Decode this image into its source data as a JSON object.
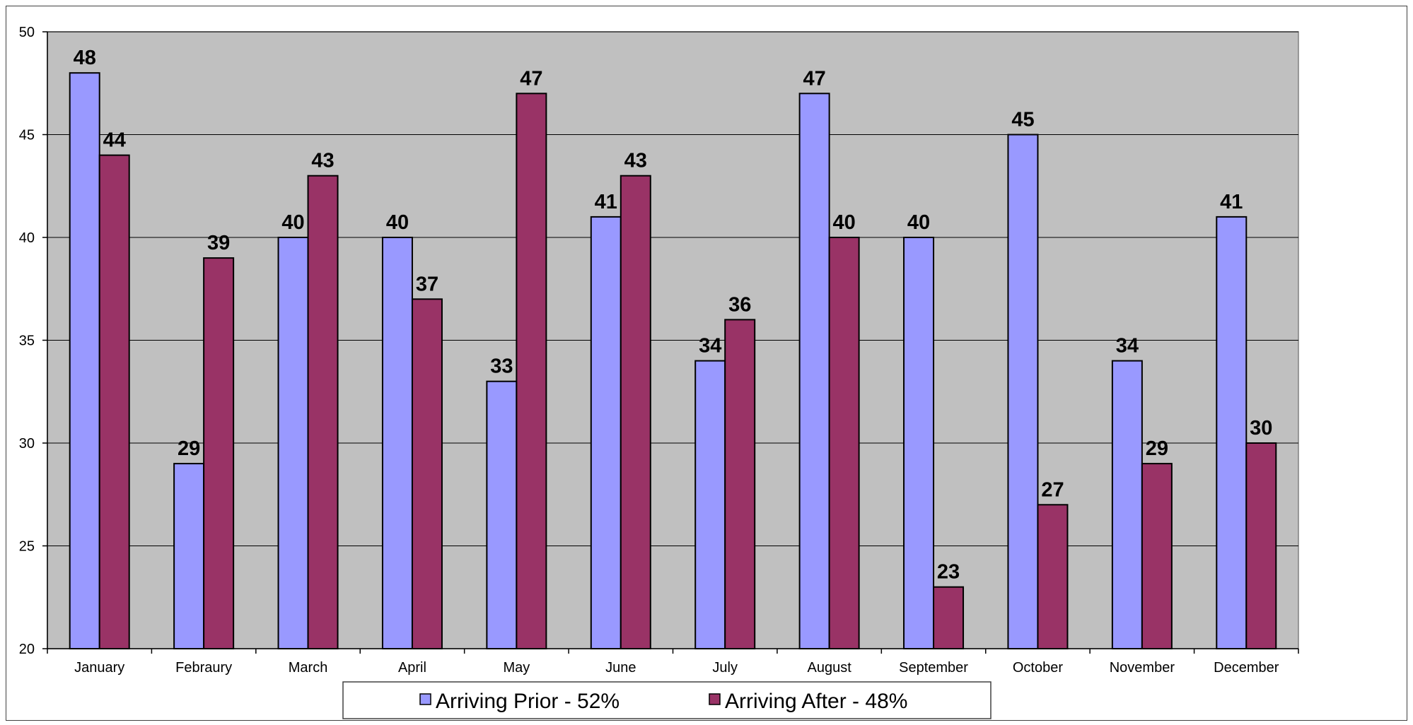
{
  "chart_data": {
    "type": "bar",
    "title": "",
    "xlabel": "",
    "ylabel": "",
    "ylim": [
      20,
      50
    ],
    "ytick_step": 5,
    "grid": true,
    "legend_position": "bottom",
    "plot_background": "#C0C0C0",
    "categories": [
      "January",
      "Febraury",
      "March",
      "April",
      "May",
      "June",
      "July",
      "August",
      "September",
      "October",
      "November",
      "December"
    ],
    "series": [
      {
        "name": "Arriving Prior - 52%",
        "color": "#9999FF",
        "values": [
          48,
          29,
          40,
          40,
          33,
          41,
          34,
          47,
          40,
          45,
          34,
          41
        ]
      },
      {
        "name": "Arriving After - 48%",
        "color": "#993366",
        "values": [
          44,
          39,
          43,
          37,
          47,
          43,
          36,
          40,
          23,
          27,
          29,
          30
        ]
      }
    ]
  }
}
